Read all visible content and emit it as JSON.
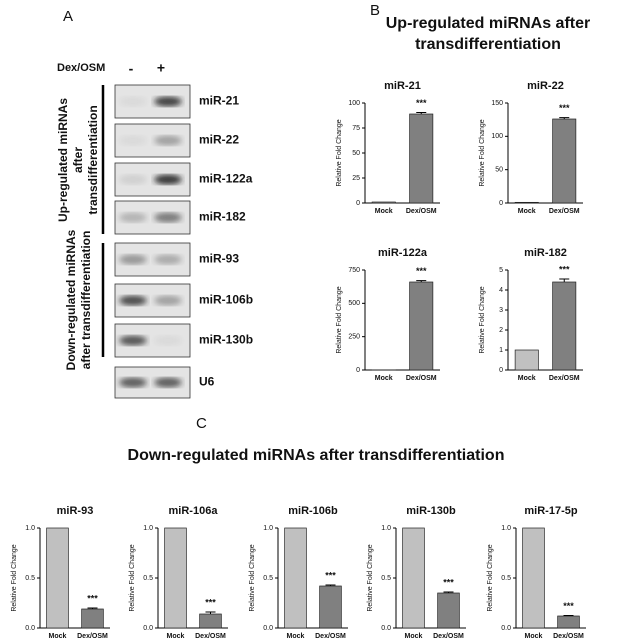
{
  "figure": {
    "panel_labels": [
      "A",
      "B",
      "C"
    ],
    "b_title": [
      "Up-regulated miRNAs after",
      "transdifferentiation"
    ],
    "c_title": "Down-regulated miRNAs after transdifferentiation",
    "blot": {
      "treatment": "Dex/OSM",
      "minus": "-",
      "plus": "+",
      "rows": [
        "miR-21",
        "miR-22",
        "miR-122a",
        "miR-182",
        "miR-93",
        "miR-106b",
        "miR-130b",
        "U6"
      ],
      "up_group": [
        "Up-regulated miRNAs",
        "after",
        "transdifferentiation"
      ],
      "down_group": [
        "Down-regulated miRNAs",
        "after transdifferentiation"
      ]
    }
  },
  "chart_data": [
    {
      "type": "bar",
      "title": "miR-21",
      "ylabel": "Relative Fold Change",
      "categories": [
        "Mock",
        "Dex/OSM"
      ],
      "values": [
        1,
        89
      ],
      "errors": [
        null,
        1.5
      ],
      "colors": [
        "#c0c0c0",
        "#808080"
      ],
      "annotation": "***",
      "ylim": [
        0,
        100
      ],
      "yticks": [
        0,
        25,
        50,
        75,
        100
      ]
    },
    {
      "type": "bar",
      "title": "miR-22",
      "ylabel": "Relative Fold Change",
      "categories": [
        "Mock",
        "Dex/OSM"
      ],
      "values": [
        1,
        126
      ],
      "errors": [
        null,
        2
      ],
      "colors": [
        "#c0c0c0",
        "#808080"
      ],
      "annotation": "***",
      "ylim": [
        0,
        150
      ],
      "yticks": [
        0,
        50,
        100,
        150
      ]
    },
    {
      "type": "bar",
      "title": "miR-122a",
      "ylabel": "Relative Fold Change",
      "categories": [
        "Mock",
        "Dex/OSM"
      ],
      "values": [
        1,
        660
      ],
      "errors": [
        null,
        10
      ],
      "colors": [
        "#c0c0c0",
        "#808080"
      ],
      "annotation": "***",
      "ylim": [
        0,
        750
      ],
      "yticks": [
        0,
        250,
        500,
        750
      ]
    },
    {
      "type": "bar",
      "title": "miR-182",
      "ylabel": "Relative Fold Change",
      "categories": [
        "Mock",
        "Dex/OSM"
      ],
      "values": [
        1,
        4.4
      ],
      "errors": [
        null,
        0.15
      ],
      "colors": [
        "#c0c0c0",
        "#808080"
      ],
      "annotation": "***",
      "ylim": [
        0,
        5
      ],
      "yticks": [
        0,
        1,
        2,
        3,
        4,
        5
      ]
    },
    {
      "type": "bar",
      "title": "miR-93",
      "ylabel": "Relative Fold Change",
      "categories": [
        "Mock",
        "Dex/OSM"
      ],
      "values": [
        1,
        0.19
      ],
      "errors": [
        null,
        0.01
      ],
      "colors": [
        "#c0c0c0",
        "#808080"
      ],
      "annotation": "***",
      "ylim": [
        0,
        1
      ],
      "yticks": [
        {
          "value": 0,
          "label": "0.0"
        },
        0.5,
        {
          "value": 1,
          "label": "1.0"
        }
      ]
    },
    {
      "type": "bar",
      "title": "miR-106a",
      "ylabel": "Relative Fold Change",
      "categories": [
        "Mock",
        "Dex/OSM"
      ],
      "values": [
        1,
        0.14
      ],
      "errors": [
        null,
        0.02
      ],
      "colors": [
        "#c0c0c0",
        "#808080"
      ],
      "annotation": "***",
      "ylim": [
        0,
        1
      ],
      "yticks": [
        {
          "value": 0,
          "label": "0.0"
        },
        0.5,
        {
          "value": 1,
          "label": "1.0"
        }
      ]
    },
    {
      "type": "bar",
      "title": "miR-106b",
      "ylabel": "Relative Fold Change",
      "categories": [
        "Mock",
        "Dex/OSM"
      ],
      "values": [
        1,
        0.42
      ],
      "errors": [
        null,
        0.01
      ],
      "colors": [
        "#c0c0c0",
        "#808080"
      ],
      "annotation": "***",
      "ylim": [
        0,
        1
      ],
      "yticks": [
        {
          "value": 0,
          "label": "0.0"
        },
        0.5,
        {
          "value": 1,
          "label": "1.0"
        }
      ]
    },
    {
      "type": "bar",
      "title": "miR-130b",
      "ylabel": "Relative Fold Change",
      "categories": [
        "Mock",
        "Dex/OSM"
      ],
      "values": [
        1,
        0.35
      ],
      "errors": [
        null,
        0.01
      ],
      "colors": [
        "#c0c0c0",
        "#808080"
      ],
      "annotation": "***",
      "ylim": [
        0,
        1
      ],
      "yticks": [
        {
          "value": 0,
          "label": "0.0"
        },
        0.5,
        {
          "value": 1,
          "label": "1.0"
        }
      ]
    },
    {
      "type": "bar",
      "title": "miR-17-5p",
      "ylabel": "Relative Fold Change",
      "categories": [
        "Mock",
        "Dex/OSM"
      ],
      "values": [
        1,
        0.12
      ],
      "errors": [
        null,
        0.005
      ],
      "colors": [
        "#c0c0c0",
        "#808080"
      ],
      "annotation": "***",
      "ylim": [
        0,
        1
      ],
      "yticks": [
        {
          "value": 0,
          "label": "0.0"
        },
        0.5,
        {
          "value": 1,
          "label": "1.0"
        }
      ]
    }
  ]
}
